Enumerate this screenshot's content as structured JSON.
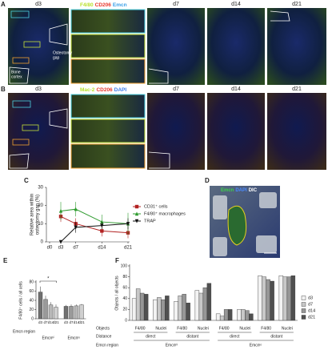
{
  "figure": {
    "panel_a": {
      "letter": "A",
      "day_labels": [
        "d3",
        "d7",
        "d14",
        "d21"
      ],
      "stain_labels": [
        "F4/80",
        "CD206",
        "Emcn"
      ],
      "stain_colors": [
        "#b8e02a",
        "#e8362a",
        "#3aa0e8"
      ],
      "annotations": [
        [
          "Osteotomy",
          "gap"
        ],
        [
          "Bone",
          "cortex"
        ]
      ]
    },
    "panel_b": {
      "letter": "B",
      "day_labels": [
        "d3",
        "d7",
        "d14",
        "d21"
      ],
      "stain_labels": [
        "Mac-2",
        "CD206",
        "DAPI"
      ],
      "stain_colors": [
        "#b8e02a",
        "#e8362a",
        "#3a7ae8"
      ]
    },
    "panel_d": {
      "letter": "D",
      "stain_labels": [
        "Emcn",
        "DAPI",
        "DIC"
      ],
      "stain_colors": [
        "#3cd24a",
        "#4a8aff",
        "#ffffff"
      ]
    }
  },
  "chart_data": [
    {
      "type": "line",
      "letter": "C",
      "ylabel": [
        "Relative area within",
        "osteotomy gap (%)"
      ],
      "x": [
        0,
        3,
        7,
        14,
        21
      ],
      "xlim": [
        0,
        21
      ],
      "xticks": [
        {
          "value": 0,
          "label": "d0"
        },
        {
          "value": 3,
          "label": "d3"
        },
        {
          "value": 7,
          "label": "d7"
        },
        {
          "value": 14,
          "label": "d14"
        },
        {
          "value": 21,
          "label": "d21"
        }
      ],
      "ylim": [
        0,
        30
      ],
      "yticks": [
        0,
        10,
        20,
        30
      ],
      "series": [
        {
          "name": "CD31⁺ cells",
          "color": "#b22222",
          "marker": "square",
          "values": [
            null,
            14,
            10,
            6,
            5
          ],
          "errors": [
            null,
            3,
            3,
            3,
            3
          ]
        },
        {
          "name": "F4/80⁺ macrophages",
          "color": "#2e9b2e",
          "marker": "triangle",
          "values": [
            null,
            17,
            18,
            11,
            10
          ],
          "errors": [
            null,
            5,
            4,
            4,
            6
          ]
        },
        {
          "name": "TRAP",
          "color": "#111111",
          "marker": "triangle-down",
          "values": [
            null,
            0,
            8,
            9,
            10
          ],
          "errors": [
            null,
            0,
            3,
            2,
            3
          ]
        }
      ]
    },
    {
      "type": "bar",
      "letter": "E",
      "ylabel": "F4/80⁺ cells / all cells",
      "categories": [
        "d3",
        "d7",
        "d14",
        "d21",
        "d3",
        "d7",
        "d14",
        "d21"
      ],
      "values": [
        58,
        42,
        30,
        25,
        27,
        27,
        28,
        30
      ],
      "errors": [
        12,
        8,
        6,
        6,
        3,
        4,
        3,
        2
      ],
      "colors": [
        "#707070",
        "#9a9a9a",
        "#b8b8b8",
        "#d0d0d0",
        "#707070",
        "#9a9a9a",
        "#b8b8b8",
        "#d0d0d0"
      ],
      "groups": [
        "Emcnʰⁱ",
        "Emcnˡᵒ"
      ],
      "group_title": "Emcn region",
      "annotation": "*",
      "ylim": [
        0,
        80
      ],
      "yticks": [
        0,
        20,
        40,
        60,
        80
      ]
    },
    {
      "type": "grouped_bar",
      "letter": "F",
      "ylabel": "Objects / all objects",
      "categories": [
        "F4/80",
        "Nuclei",
        "F4/80",
        "Nuclei",
        "F4/80",
        "Nuclei",
        "F4/80",
        "Nuclei"
      ],
      "distance": [
        "direct",
        "distant",
        "direct",
        "distant"
      ],
      "regions": [
        "Emcnʰⁱ",
        "Emcnˡᵒ"
      ],
      "row_labels": [
        "Objects",
        "Distance",
        "Emcn region"
      ],
      "ylim": [
        0,
        100
      ],
      "yticks": [
        0,
        20,
        40,
        60,
        80,
        100
      ],
      "series": [
        {
          "name": "d3",
          "color": "#f2f2f2",
          "values": [
            40,
            38,
            35,
            55,
            12,
            20,
            82,
            82
          ]
        },
        {
          "name": "d7",
          "color": "#c8c8c8",
          "values": [
            58,
            42,
            45,
            50,
            8,
            20,
            80,
            80
          ]
        },
        {
          "name": "d14",
          "color": "#969696",
          "values": [
            50,
            38,
            48,
            60,
            20,
            18,
            75,
            80
          ]
        },
        {
          "name": "d21",
          "color": "#505050",
          "values": [
            48,
            45,
            32,
            68,
            20,
            12,
            72,
            82
          ]
        }
      ]
    }
  ]
}
